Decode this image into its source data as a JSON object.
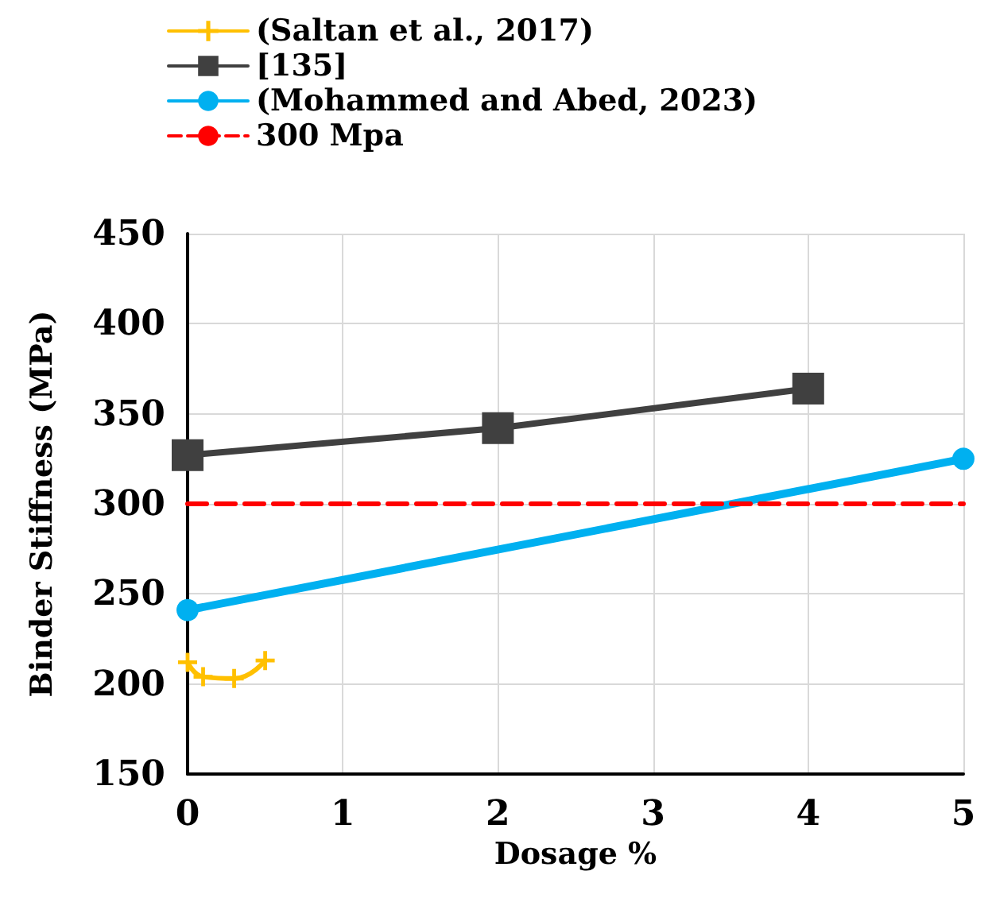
{
  "chart_data": {
    "type": "line",
    "xlabel": "Dosage %",
    "ylabel": "Binder Stiffness (MPa)",
    "xlim": [
      0,
      5
    ],
    "xticks": [
      0,
      1,
      2,
      3,
      4,
      5
    ],
    "ylim": [
      150,
      450
    ],
    "yticks": [
      150,
      200,
      250,
      300,
      350,
      400,
      450
    ],
    "grid": true,
    "legend": "top left",
    "series": [
      {
        "name": "(Saltan et al., 2017)",
        "color": "#ffc000",
        "marker": "cross",
        "x": [
          0,
          0.1,
          0.3,
          0.5
        ],
        "values": [
          212,
          204,
          203,
          213
        ]
      },
      {
        "name": "[135]",
        "color": "#404040",
        "marker": "square",
        "x": [
          0,
          2,
          4
        ],
        "values": [
          327,
          342,
          364
        ]
      },
      {
        "name": "(Mohammed and Abed, 2023)",
        "color": "#00b0f0",
        "marker": "circle",
        "x": [
          0,
          5
        ],
        "values": [
          241,
          325
        ]
      },
      {
        "name": "300 Mpa",
        "color": "#ff0000",
        "marker": "none",
        "line_style": "dashed",
        "x": [
          0,
          5
        ],
        "values": [
          300,
          300
        ]
      }
    ]
  }
}
